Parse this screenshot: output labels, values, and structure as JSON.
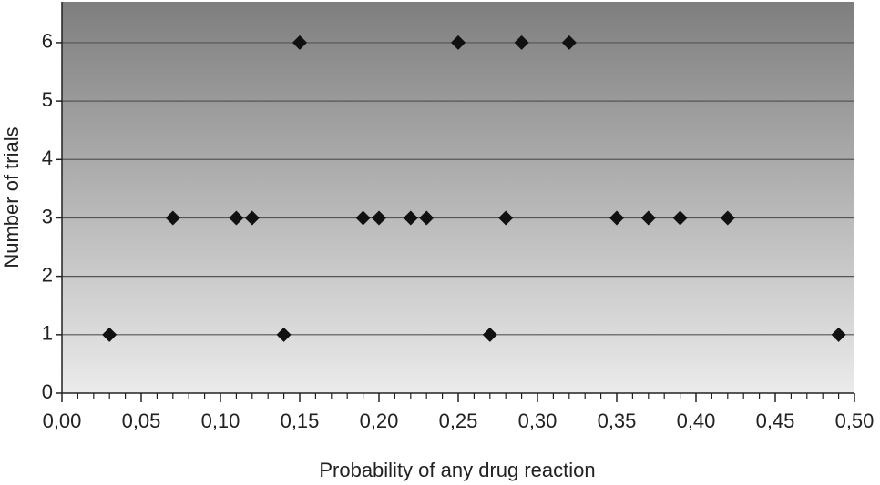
{
  "chart_data": {
    "type": "scatter",
    "x_label": "Probability of any drug reaction",
    "y_label": "Number of trials",
    "x": [
      0.03,
      0.07,
      0.11,
      0.12,
      0.14,
      0.15,
      0.19,
      0.2,
      0.22,
      0.23,
      0.25,
      0.27,
      0.28,
      0.29,
      0.32,
      0.35,
      0.37,
      0.39,
      0.42,
      0.49
    ],
    "values": [
      1,
      3,
      3,
      3,
      1,
      6,
      3,
      3,
      3,
      3,
      6,
      1,
      3,
      6,
      6,
      3,
      3,
      3,
      3,
      1
    ],
    "color": "#111111",
    "xlim": [
      0,
      0.5
    ],
    "ylim": [
      0,
      6.7
    ],
    "xticks": [
      {
        "value": 0,
        "label": "0,00"
      },
      {
        "value": 0.05,
        "label": "0,05"
      },
      {
        "value": 0.1,
        "label": "0,10"
      },
      {
        "value": 0.15,
        "label": "0,15"
      },
      {
        "value": 0.2,
        "label": "0,20"
      },
      {
        "value": 0.25,
        "label": "0,25"
      },
      {
        "value": 0.3,
        "label": "0,30"
      },
      {
        "value": 0.35,
        "label": "0,35"
      },
      {
        "value": 0.4,
        "label": "0,40"
      },
      {
        "value": 0.45,
        "label": "0,45"
      },
      {
        "value": 0.5,
        "label": "0,50"
      }
    ],
    "yticks": [
      0,
      1,
      2,
      3,
      4,
      5,
      6
    ],
    "grid": true
  }
}
